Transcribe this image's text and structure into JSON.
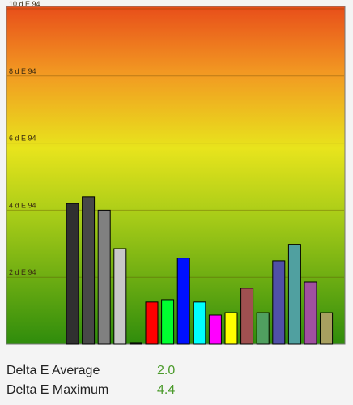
{
  "chart_data": {
    "type": "bar",
    "values": [
      4.2,
      4.4,
      4.0,
      2.85,
      0.05,
      1.26,
      1.33,
      2.57,
      1.26,
      0.87,
      0.94,
      1.67,
      0.94,
      2.49,
      2.98,
      1.86,
      0.94
    ],
    "colors": [
      "#303030",
      "#484848",
      "#808080",
      "#c8c8c8",
      "#101010",
      "#ff0000",
      "#00ff30",
      "#0010ff",
      "#00ffff",
      "#ff00ff",
      "#ffff00",
      "#a05050",
      "#50a060",
      "#5050a8",
      "#50a0a0",
      "#a050a0",
      "#a8a060"
    ],
    "ylim": [
      0,
      10
    ],
    "yticks": [
      {
        "value": 2,
        "label": "2 d E 94"
      },
      {
        "value": 4,
        "label": "4 d E 94"
      },
      {
        "value": 6,
        "label": "6 d E 94"
      },
      {
        "value": 8,
        "label": "8 d E 94"
      },
      {
        "value": 10,
        "label": "10 d E 94"
      }
    ],
    "grid": true
  },
  "stats": [
    {
      "label": "Delta E Average",
      "value": "2.0"
    },
    {
      "label": "Delta E Maximum",
      "value": "4.4"
    }
  ]
}
